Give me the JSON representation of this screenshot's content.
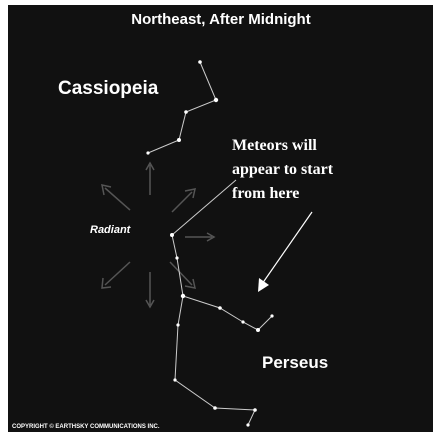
{
  "header": {
    "title": "Northeast, After Midnight"
  },
  "labels": {
    "cassiopeia": "Cassiopeia",
    "perseus": "Perseus",
    "radiant": "Radiant",
    "annotation": [
      "Meteors will",
      "appear to start",
      "from here"
    ]
  },
  "footer": {
    "copyright": "COPYRIGHT © EARTHSKY COMMUNICATIONS INC."
  }
}
